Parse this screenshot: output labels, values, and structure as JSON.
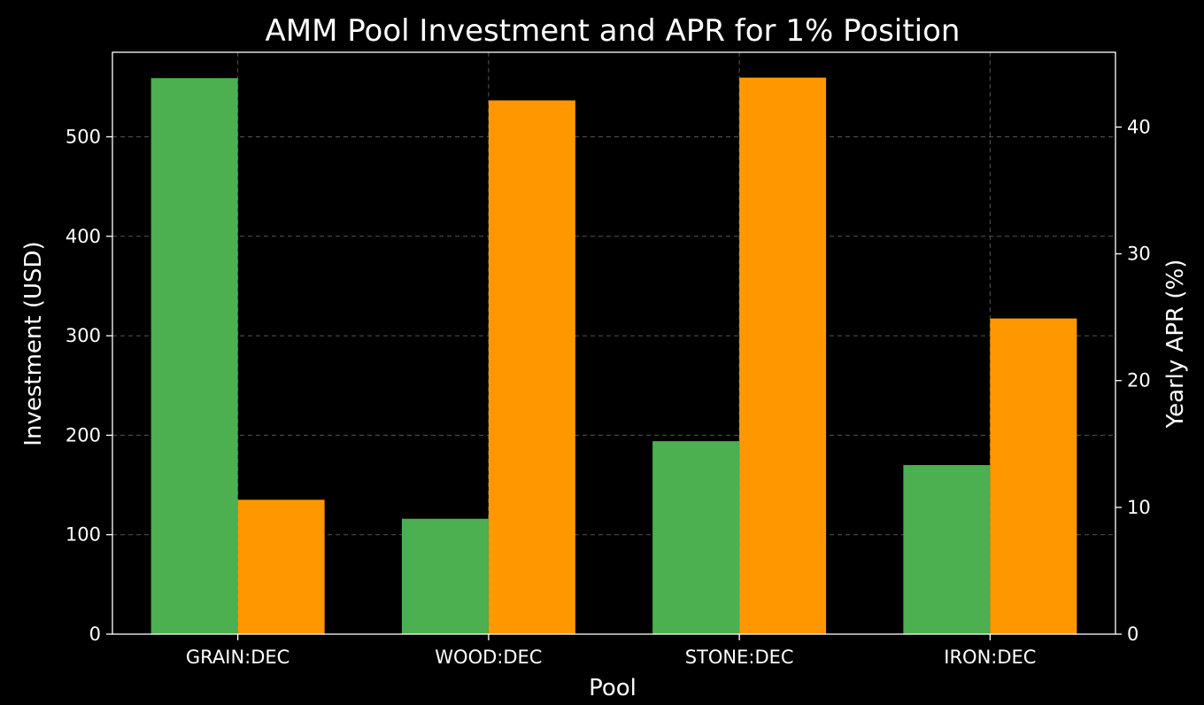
{
  "chart_data": {
    "type": "bar",
    "title": "AMM Pool Investment and APR for 1% Position",
    "xlabel": "Pool",
    "ylabel": "Investment (USD)",
    "y2label": "Yearly APR (%)",
    "categories": [
      "GRAIN:DEC",
      "WOOD:DEC",
      "STONE:DEC",
      "IRON:DEC"
    ],
    "series": [
      {
        "name": "Investment (USD)",
        "axis": "left",
        "color": "#4caf50",
        "values": [
          559,
          116,
          194,
          170
        ]
      },
      {
        "name": "Yearly APR (%)",
        "axis": "right",
        "color": "#ff9800",
        "values": [
          10.6,
          42.1,
          43.9,
          24.9
        ]
      }
    ],
    "ylim": [
      0,
      585
    ],
    "y2lim": [
      0,
      45.9
    ],
    "yticks": [
      0,
      100,
      200,
      300,
      400,
      500
    ],
    "y2ticks": [
      0,
      10,
      20,
      30,
      40
    ],
    "grid": true,
    "legend": "none",
    "colors": {
      "background": "#000000",
      "text": "#ffffff",
      "grid": "#555555"
    }
  }
}
